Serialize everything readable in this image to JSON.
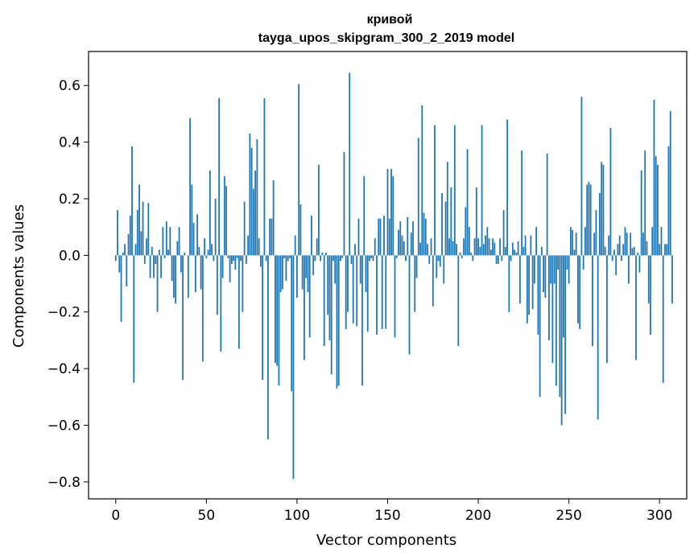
{
  "chart_data": {
    "type": "bar",
    "title": "кривой",
    "subtitle": "tayga_upos_skipgram_300_2_2019 model",
    "xlabel": "Vector components",
    "ylabel": "Components values",
    "xlim": [
      -15,
      315
    ],
    "ylim": [
      -0.86,
      0.72
    ],
    "xticks": [
      0,
      50,
      100,
      150,
      200,
      250,
      300
    ],
    "xtick_labels": [
      "0",
      "50",
      "100",
      "150",
      "200",
      "250",
      "300"
    ],
    "yticks": [
      -0.8,
      -0.6,
      -0.4,
      -0.2,
      0.0,
      0.2,
      0.4,
      0.6
    ],
    "ytick_labels": [
      "−0.8",
      "−0.6",
      "−0.4",
      "−0.2",
      "0.0",
      "0.2",
      "0.4",
      "0.6"
    ],
    "grid": false,
    "bar_color": "#1f77b4",
    "values": [
      -0.02,
      0.16,
      -0.06,
      -0.235,
      0.01,
      0.04,
      -0.11,
      0.075,
      0.14,
      0.385,
      -0.45,
      0.04,
      0.16,
      0.25,
      0.085,
      0.19,
      -0.03,
      0.06,
      0.185,
      -0.08,
      0.03,
      -0.08,
      -0.03,
      -0.2,
      0.02,
      -0.08,
      0.1,
      -0.01,
      0.12,
      0.02,
      0.1,
      -0.09,
      -0.15,
      -0.17,
      0.05,
      0.1,
      -0.06,
      -0.44,
      0.01,
      0.0,
      -0.15,
      0.485,
      0.25,
      0.115,
      -0.13,
      0.145,
      0.03,
      -0.12,
      -0.375,
      0.06,
      -0.01,
      0.02,
      0.3,
      0.04,
      -0.02,
      0.2,
      -0.21,
      0.555,
      -0.34,
      -0.08,
      0.28,
      0.245,
      -0.01,
      -0.095,
      -0.03,
      -0.02,
      -0.05,
      -0.01,
      -0.33,
      -0.02,
      -0.2,
      0.19,
      -0.03,
      0.07,
      0.43,
      0.38,
      0.235,
      0.3,
      0.41,
      0.06,
      -0.04,
      -0.44,
      0.555,
      -0.02,
      -0.65,
      0.13,
      0.13,
      0.265,
      -0.38,
      -0.39,
      -0.46,
      -0.13,
      -0.12,
      -0.01,
      -0.09,
      -0.02,
      -0.01,
      -0.48,
      -0.79,
      0.07,
      -0.15,
      0.605,
      0.18,
      -0.12,
      -0.37,
      -0.08,
      -0.13,
      -0.29,
      0.14,
      -0.07,
      -0.02,
      0.06,
      0.32,
      -0.02,
      0.01,
      -0.32,
      0.01,
      -0.21,
      -0.3,
      -0.42,
      -0.02,
      -0.1,
      -0.47,
      -0.46,
      -0.02,
      -0.01,
      0.365,
      -0.26,
      -0.2,
      0.645,
      -0.03,
      -0.24,
      0.04,
      -0.25,
      0.13,
      -0.1,
      -0.46,
      0.28,
      -0.13,
      -0.27,
      -0.02,
      -0.01,
      -0.02,
      0.06,
      -0.28,
      0.13,
      0.13,
      -0.26,
      0.14,
      -0.26,
      0.305,
      0.13,
      0.305,
      0.28,
      -0.29,
      -0.01,
      0.09,
      0.12,
      0.07,
      0.05,
      -0.02,
      0.135,
      -0.35,
      0.08,
      0.12,
      -0.2,
      -0.08,
      0.415,
      0.045,
      0.53,
      0.15,
      0.13,
      0.04,
      -0.03,
      0.06,
      -0.18,
      0.46,
      -0.08,
      -0.02,
      -0.04,
      0.22,
      -0.1,
      0.19,
      0.33,
      0.06,
      0.24,
      0.05,
      0.46,
      0.04,
      -0.32,
      0.01,
      -0.01,
      0.06,
      0.17,
      0.375,
      0.1,
      0.01,
      -0.02,
      0.06,
      0.24,
      0.06,
      0.03,
      0.46,
      0.04,
      0.07,
      0.1,
      0.06,
      0.02,
      0.06,
      0.045,
      -0.03,
      -0.03,
      0.06,
      -0.02,
      0.16,
      0.03,
      0.48,
      -0.2,
      -0.02,
      0.045,
      0.02,
      0.01,
      0.05,
      -0.17,
      0.37,
      0.03,
      0.07,
      -0.24,
      -0.21,
      0.07,
      -0.19,
      -0.1,
      0.1,
      -0.28,
      -0.5,
      0.03,
      -0.13,
      -0.15,
      0.36,
      -0.3,
      -0.1,
      -0.38,
      -0.1,
      -0.46,
      -0.05,
      -0.5,
      -0.6,
      -0.29,
      -0.56,
      -0.05,
      -0.1,
      0.1,
      0.09,
      0.02,
      0.08,
      -0.24,
      -0.26,
      0.56,
      -0.05,
      0.1,
      0.25,
      0.26,
      0.25,
      -0.32,
      0.08,
      0.16,
      -0.58,
      0.22,
      0.33,
      0.32,
      0.03,
      -0.38,
      0.07,
      0.45,
      -0.02,
      0.02,
      -0.07,
      0.04,
      0.07,
      -0.02,
      0.04,
      0.1,
      0.08,
      -0.1,
      0.08,
      0.025,
      0.03,
      -0.37,
      0.01,
      -0.06,
      0.3,
      0.08,
      0.37,
      0.05,
      -0.17,
      -0.28,
      0.1,
      0.55,
      0.35,
      0.32,
      0.04,
      0.1,
      -0.45,
      0.04,
      0.04,
      0.385,
      0.51,
      -0.17
    ]
  }
}
